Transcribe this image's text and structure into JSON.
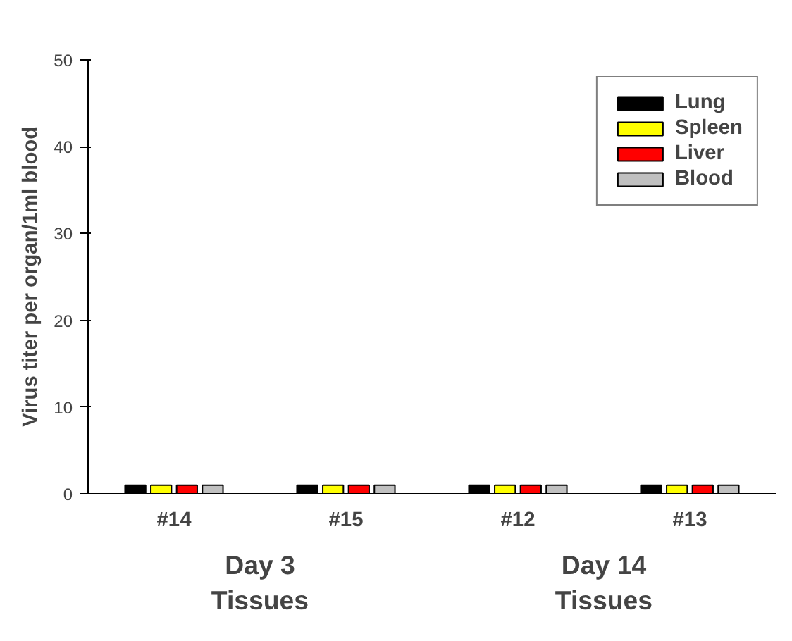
{
  "chart_data": {
    "type": "bar",
    "ylabel": "Virus titer per organ/1ml blood",
    "categories": [
      "#14",
      "#15",
      "#12",
      "#13"
    ],
    "series": [
      {
        "name": "Lung",
        "color": "#000000",
        "values": [
          1,
          1,
          1,
          1
        ]
      },
      {
        "name": "Spleen",
        "color": "#ffff00",
        "values": [
          1,
          1,
          1,
          1
        ]
      },
      {
        "name": "Liver",
        "color": "#ff0000",
        "values": [
          1,
          1,
          1,
          1
        ]
      },
      {
        "name": "Blood",
        "color": "#c0c0c0",
        "values": [
          1,
          1,
          1,
          1
        ]
      }
    ],
    "ylim": [
      0,
      50
    ],
    "yticks": [
      0,
      10,
      20,
      30,
      40,
      50
    ],
    "grid": false,
    "legend": "top right",
    "annotations": [
      "Day 3\nTissues",
      "Day 14\nTissues"
    ]
  }
}
